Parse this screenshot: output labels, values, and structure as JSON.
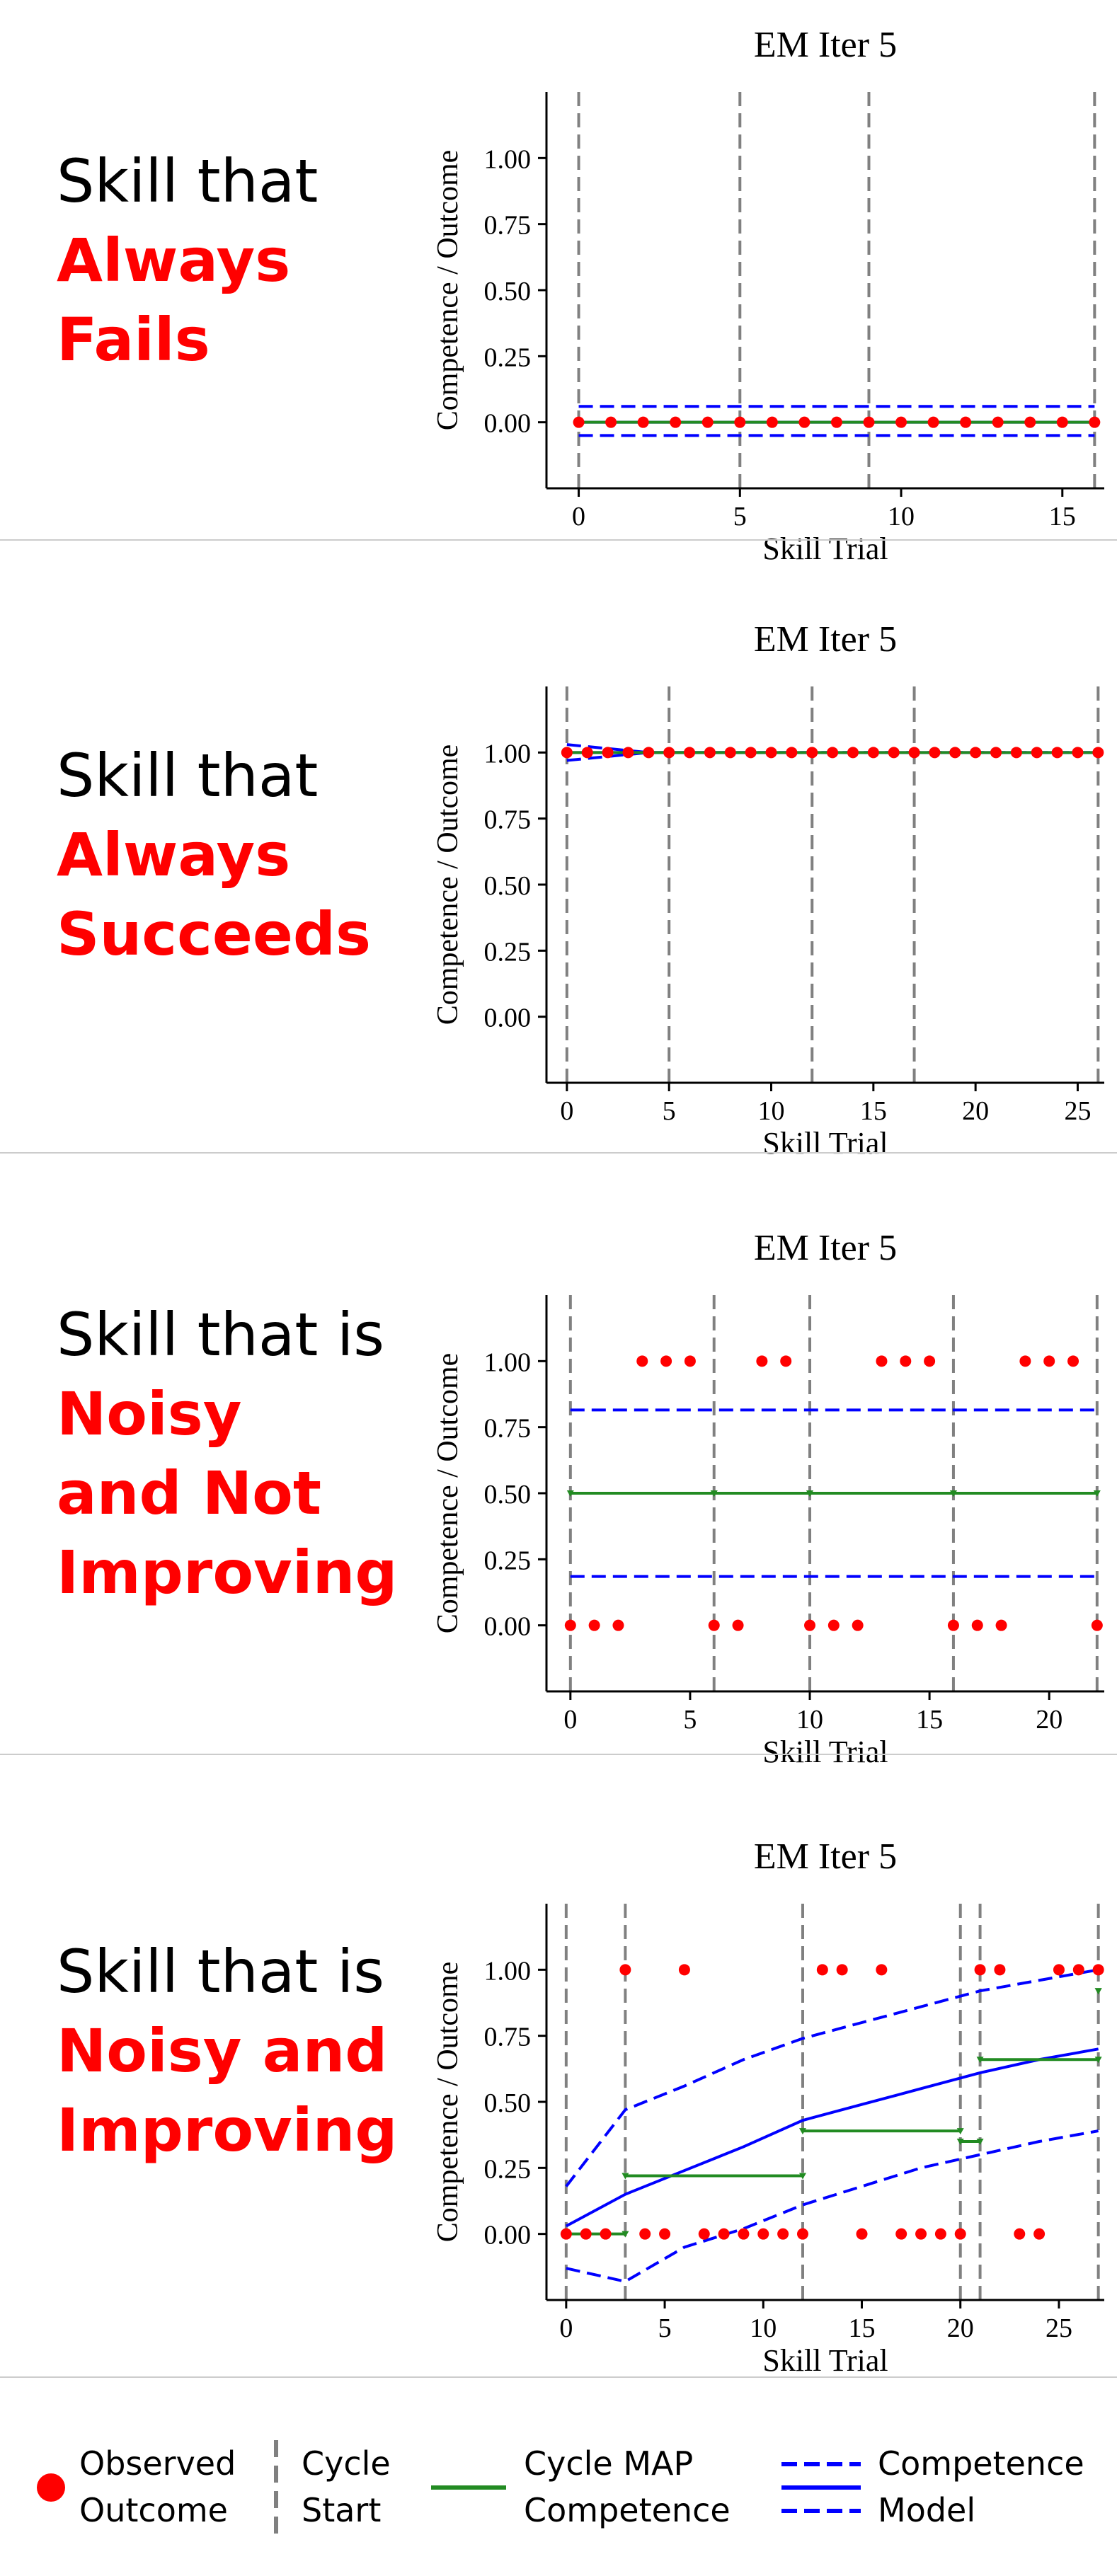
{
  "panels": [
    {
      "label_black": "Skill that",
      "label_red_lines": [
        "Always",
        "Fails"
      ]
    },
    {
      "label_black": "Skill that",
      "label_red_lines": [
        "Always",
        "Succeeds"
      ]
    },
    {
      "label_black": "Skill that is",
      "label_red_lines": [
        "Noisy",
        "and Not",
        "Improving"
      ]
    },
    {
      "label_black": "Skill that is",
      "label_red_lines": [
        "Noisy and",
        "Improving"
      ]
    }
  ],
  "legend": {
    "observed": [
      "Observed",
      "Outcome"
    ],
    "cycle_start": [
      "Cycle",
      "Start"
    ],
    "cycle_map": [
      "Cycle MAP",
      "Competence"
    ],
    "competence_model": [
      "Competence",
      "Model"
    ]
  },
  "colors": {
    "observed": "#ff0000",
    "cycle_start": "#808080",
    "map": "#228b22",
    "model": "#0000ff"
  },
  "chart_data": [
    {
      "type": "scatter",
      "title": "EM Iter 5",
      "xlabel": "Skill Trial",
      "ylabel": "Competence / Outcome",
      "xlim": [
        -1,
        16.3
      ],
      "ylim": [
        -0.25,
        1.25
      ],
      "xticks": [
        0,
        5,
        10,
        15
      ],
      "yticks": [
        0.0,
        0.25,
        0.5,
        0.75,
        1.0
      ],
      "ytick_labels": [
        "0.00",
        "0.25",
        "0.50",
        "0.75",
        "1.00"
      ],
      "cycle_starts": [
        0,
        5,
        9,
        16
      ],
      "observed": {
        "x": [
          0,
          1,
          2,
          3,
          4,
          5,
          6,
          7,
          8,
          9,
          10,
          11,
          12,
          13,
          14,
          15,
          16
        ],
        "y": [
          0,
          0,
          0,
          0,
          0,
          0,
          0,
          0,
          0,
          0,
          0,
          0,
          0,
          0,
          0,
          0,
          0
        ]
      },
      "map_segments": [
        {
          "x0": 0,
          "x1": 5,
          "y": 0.0
        },
        {
          "x0": 5,
          "x1": 9,
          "y": 0.0
        },
        {
          "x0": 9,
          "x1": 16,
          "y": 0.0
        }
      ],
      "model_mean": {
        "x": [
          0,
          16
        ],
        "y": [
          0.0,
          0.0
        ]
      },
      "model_upper": {
        "x": [
          0,
          16
        ],
        "y": [
          0.06,
          0.06
        ]
      },
      "model_lower": {
        "x": [
          0,
          16
        ],
        "y": [
          -0.05,
          -0.05
        ]
      }
    },
    {
      "type": "scatter",
      "title": "EM Iter 5",
      "xlabel": "Skill Trial",
      "ylabel": "Competence / Outcome",
      "xlim": [
        -1,
        26.3
      ],
      "ylim": [
        -0.25,
        1.25
      ],
      "xticks": [
        0,
        5,
        10,
        15,
        20,
        25
      ],
      "yticks": [
        0.0,
        0.25,
        0.5,
        0.75,
        1.0
      ],
      "ytick_labels": [
        "0.00",
        "0.25",
        "0.50",
        "0.75",
        "1.00"
      ],
      "cycle_starts": [
        0,
        5,
        12,
        17,
        26
      ],
      "observed": {
        "x": [
          0,
          1,
          2,
          3,
          4,
          5,
          6,
          7,
          8,
          9,
          10,
          11,
          12,
          13,
          14,
          15,
          16,
          17,
          18,
          19,
          20,
          21,
          22,
          23,
          24,
          25,
          26
        ],
        "y": [
          1,
          1,
          1,
          1,
          1,
          1,
          1,
          1,
          1,
          1,
          1,
          1,
          1,
          1,
          1,
          1,
          1,
          1,
          1,
          1,
          1,
          1,
          1,
          1,
          1,
          1,
          1
        ]
      },
      "map_segments": [
        {
          "x0": 0,
          "x1": 5,
          "y": 1.0
        },
        {
          "x0": 5,
          "x1": 12,
          "y": 1.0
        },
        {
          "x0": 12,
          "x1": 17,
          "y": 1.0
        },
        {
          "x0": 17,
          "x1": 26,
          "y": 1.0
        }
      ],
      "model_mean": {
        "x": [
          0,
          26
        ],
        "y": [
          1.0,
          1.0
        ]
      },
      "model_upper": {
        "x": [
          0,
          4,
          26
        ],
        "y": [
          1.03,
          1.0,
          1.0
        ]
      },
      "model_lower": {
        "x": [
          0,
          4,
          26
        ],
        "y": [
          0.97,
          1.0,
          1.0
        ]
      }
    },
    {
      "type": "scatter",
      "title": "EM Iter 5",
      "xlabel": "Skill Trial",
      "ylabel": "Competence / Outcome",
      "xlim": [
        -1,
        22.3
      ],
      "ylim": [
        -0.25,
        1.25
      ],
      "xticks": [
        0,
        5,
        10,
        15,
        20
      ],
      "yticks": [
        0.0,
        0.25,
        0.5,
        0.75,
        1.0
      ],
      "ytick_labels": [
        "0.00",
        "0.25",
        "0.50",
        "0.75",
        "1.00"
      ],
      "cycle_starts": [
        0,
        6,
        10,
        16,
        22
      ],
      "observed": {
        "x": [
          0,
          1,
          2,
          3,
          4,
          5,
          6,
          7,
          8,
          9,
          10,
          11,
          12,
          13,
          14,
          15,
          16,
          17,
          18,
          19,
          20,
          21,
          22
        ],
        "y": [
          0,
          0,
          0,
          1,
          1,
          1,
          0,
          0,
          1,
          1,
          0,
          0,
          0,
          1,
          1,
          1,
          0,
          0,
          0,
          1,
          1,
          1,
          0
        ]
      },
      "map_segments": [
        {
          "x0": 0,
          "x1": 6,
          "y": 0.5
        },
        {
          "x0": 6,
          "x1": 10,
          "y": 0.5
        },
        {
          "x0": 10,
          "x1": 16,
          "y": 0.5
        },
        {
          "x0": 16,
          "x1": 22,
          "y": 0.5
        }
      ],
      "model_mean": {
        "x": [
          0,
          22
        ],
        "y": [
          0.5,
          0.5
        ]
      },
      "model_upper": {
        "x": [
          0,
          22
        ],
        "y": [
          0.815,
          0.815
        ]
      },
      "model_lower": {
        "x": [
          0,
          22
        ],
        "y": [
          0.185,
          0.185
        ]
      }
    },
    {
      "type": "scatter",
      "title": "EM Iter 5",
      "xlabel": "Skill Trial",
      "ylabel": "Competence / Outcome",
      "xlim": [
        -1,
        27.3
      ],
      "ylim": [
        -0.25,
        1.25
      ],
      "xticks": [
        0,
        5,
        10,
        15,
        20,
        25
      ],
      "yticks": [
        0.0,
        0.25,
        0.5,
        0.75,
        1.0
      ],
      "ytick_labels": [
        "0.00",
        "0.25",
        "0.50",
        "0.75",
        "1.00"
      ],
      "cycle_starts": [
        0,
        3,
        12,
        20,
        21,
        27
      ],
      "observed": {
        "x": [
          0,
          1,
          2,
          3,
          4,
          5,
          6,
          7,
          8,
          9,
          10,
          11,
          12,
          13,
          14,
          15,
          16,
          17,
          18,
          19,
          20,
          21,
          22,
          23,
          24,
          25,
          26,
          27
        ],
        "y": [
          0,
          0,
          0,
          1,
          0,
          0,
          1,
          0,
          0,
          0,
          0,
          0,
          0,
          1,
          1,
          0,
          1,
          0,
          0,
          0,
          0,
          1,
          1,
          0,
          0,
          1,
          1,
          1
        ]
      },
      "map_segments": [
        {
          "x0": 0,
          "x1": 3,
          "y": 0.0
        },
        {
          "x0": 3,
          "x1": 12,
          "y": 0.22
        },
        {
          "x0": 12,
          "x1": 20,
          "y": 0.39
        },
        {
          "x0": 20,
          "x1": 21,
          "y": 0.35
        },
        {
          "x0": 21,
          "x1": 27,
          "y": 0.66
        },
        {
          "x0": 27,
          "x1": 27,
          "y": 0.92
        }
      ],
      "model_mean": {
        "x": [
          0,
          3,
          6,
          9,
          12,
          15,
          18,
          21,
          24,
          27
        ],
        "y": [
          0.03,
          0.15,
          0.24,
          0.33,
          0.43,
          0.49,
          0.55,
          0.61,
          0.66,
          0.7
        ]
      },
      "model_upper": {
        "x": [
          0,
          3,
          6,
          9,
          12,
          15,
          18,
          21,
          24,
          27
        ],
        "y": [
          0.18,
          0.47,
          0.56,
          0.66,
          0.74,
          0.8,
          0.86,
          0.92,
          0.96,
          1.0
        ]
      },
      "model_lower": {
        "x": [
          0,
          3,
          6,
          9,
          12,
          15,
          18,
          21,
          24,
          27
        ],
        "y": [
          -0.13,
          -0.18,
          -0.05,
          0.02,
          0.11,
          0.18,
          0.25,
          0.3,
          0.35,
          0.39
        ]
      }
    }
  ]
}
